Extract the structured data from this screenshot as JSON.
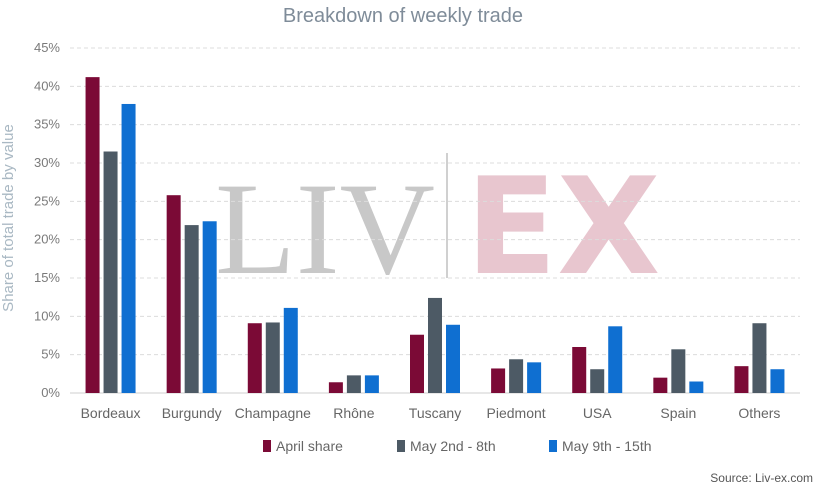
{
  "chart_data": {
    "type": "bar",
    "title": "Breakdown of weekly trade",
    "xlabel": "",
    "ylabel": "Share of total trade by value",
    "ylim": [
      0,
      45
    ],
    "yticks": [
      "0%",
      "5%",
      "10%",
      "15%",
      "20%",
      "25%",
      "30%",
      "35%",
      "40%",
      "45%"
    ],
    "grid": true,
    "legend_position": "bottom",
    "categories": [
      "Bordeaux",
      "Burgundy",
      "Champagne",
      "Rhône",
      "Tuscany",
      "Piedmont",
      "USA",
      "Spain",
      "Others"
    ],
    "series": [
      {
        "name": "April share",
        "color": "#7b0a36",
        "values": [
          41.2,
          25.8,
          9.1,
          1.4,
          7.6,
          3.2,
          6.0,
          2.0,
          3.5
        ]
      },
      {
        "name": "May 2nd - 8th",
        "color": "#4d5a65",
        "values": [
          31.5,
          21.9,
          9.2,
          2.3,
          12.4,
          4.4,
          3.1,
          5.7,
          9.1
        ]
      },
      {
        "name": "May 9th - 15th",
        "color": "#0f6fd1",
        "values": [
          37.7,
          22.4,
          11.1,
          2.3,
          8.9,
          4.0,
          8.7,
          1.5,
          3.1
        ]
      }
    ],
    "source": "Source: Liv-ex.com",
    "watermark_left": "LIV",
    "watermark_right": "EX"
  }
}
